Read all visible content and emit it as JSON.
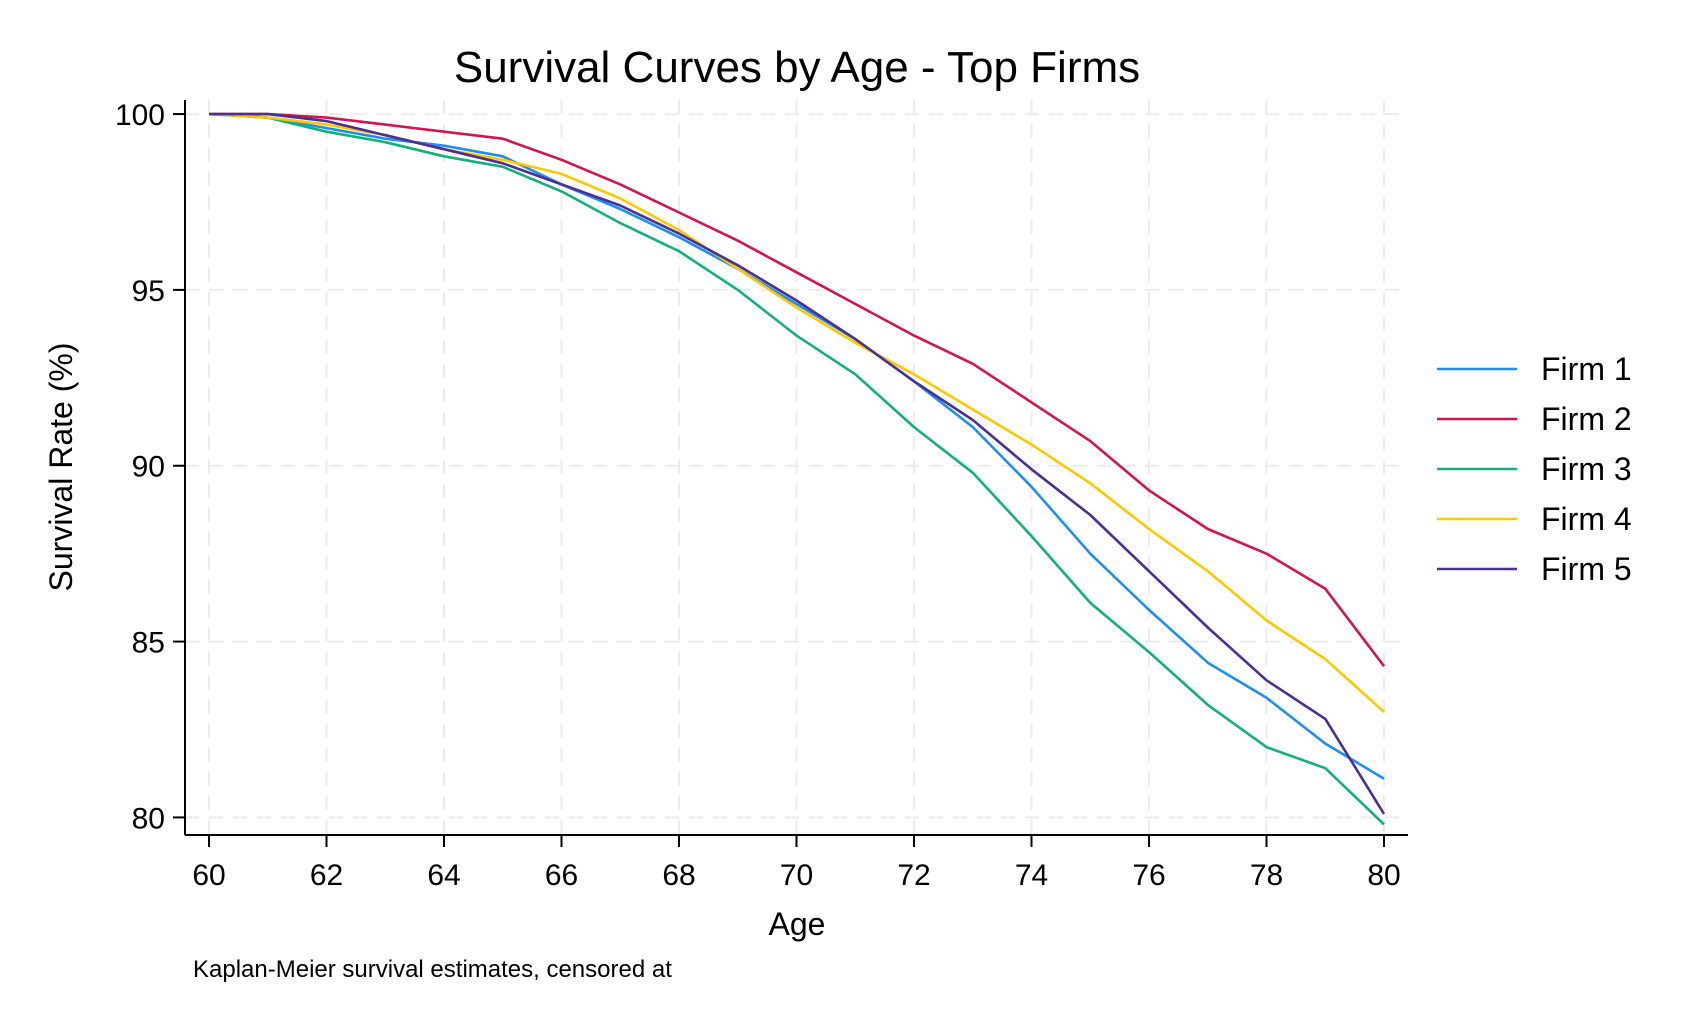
{
  "chart_data": {
    "type": "line",
    "title": "Survival Curves by Age - Top  Firms",
    "xlabel": "Age",
    "ylabel": "Survival Rate (%)",
    "note": "Kaplan-Meier survival estimates, censored at",
    "xlim": [
      60,
      80
    ],
    "ylim": [
      79.5,
      100.4
    ],
    "xticks": [
      60,
      62,
      64,
      66,
      68,
      70,
      72,
      74,
      76,
      78,
      80
    ],
    "yticks": [
      80,
      85,
      90,
      95,
      100
    ],
    "grid": true,
    "legend_position": "right",
    "x": [
      60,
      61,
      62,
      63,
      64,
      65,
      66,
      67,
      68,
      69,
      70,
      71,
      72,
      73,
      74,
      75,
      76,
      77,
      78,
      79,
      80
    ],
    "series": [
      {
        "name": "Firm 1",
        "color": "#1f8ef1",
        "values": [
          100,
          99.9,
          99.6,
          99.3,
          99.1,
          98.8,
          98.0,
          97.3,
          96.5,
          95.6,
          94.6,
          93.6,
          92.4,
          91.1,
          89.4,
          87.5,
          85.9,
          84.4,
          83.4,
          82.1,
          81.1
        ]
      },
      {
        "name": "Firm 2",
        "color": "#d1164f",
        "values": [
          100,
          100,
          99.9,
          99.7,
          99.5,
          99.3,
          98.7,
          98.0,
          97.2,
          96.4,
          95.5,
          94.6,
          93.7,
          92.9,
          91.8,
          90.7,
          89.3,
          88.2,
          87.5,
          86.5,
          84.3
        ]
      },
      {
        "name": "Firm 3",
        "color": "#13b07c",
        "values": [
          100,
          99.9,
          99.5,
          99.2,
          98.8,
          98.5,
          97.8,
          96.9,
          96.1,
          95.0,
          93.7,
          92.6,
          91.1,
          89.8,
          88.0,
          86.1,
          84.7,
          83.2,
          82.0,
          81.4,
          79.8
        ]
      },
      {
        "name": "Firm 4",
        "color": "#fcc800",
        "values": [
          100,
          99.9,
          99.7,
          99.4,
          99.0,
          98.7,
          98.3,
          97.6,
          96.7,
          95.6,
          94.5,
          93.5,
          92.6,
          91.6,
          90.6,
          89.5,
          88.2,
          87.0,
          85.6,
          84.5,
          83.0
        ]
      },
      {
        "name": "Firm 5",
        "color": "#4b2f94",
        "values": [
          100,
          100,
          99.8,
          99.4,
          99.0,
          98.6,
          98.0,
          97.4,
          96.6,
          95.7,
          94.7,
          93.6,
          92.4,
          91.3,
          89.9,
          88.6,
          87.0,
          85.4,
          83.9,
          82.8,
          80.1
        ]
      }
    ]
  }
}
